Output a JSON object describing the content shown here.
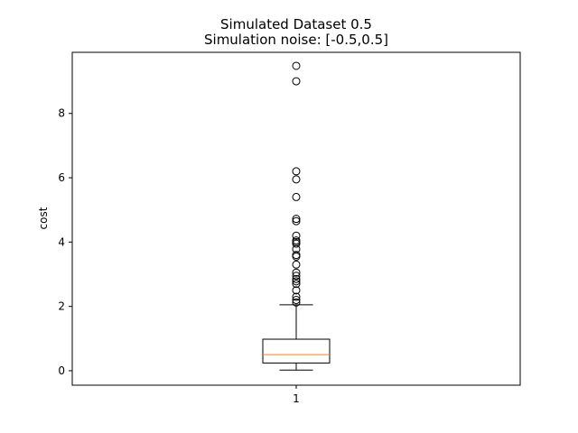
{
  "chart_data": {
    "type": "box",
    "title": "Simulated Dataset 0.5",
    "subtitle": "Simulation noise: [-0.5,0.5]",
    "xlabel": "",
    "ylabel": "cost",
    "categories": [
      "1"
    ],
    "ylim": [
      -0.45,
      9.9
    ],
    "yticks": [
      0,
      2,
      4,
      6,
      8
    ],
    "grid": false,
    "box": {
      "whisker_low": 0.02,
      "q1": 0.24,
      "median": 0.5,
      "q3": 0.98,
      "whisker_high": 2.05
    },
    "outliers": [
      2.12,
      2.2,
      2.3,
      2.5,
      2.7,
      2.78,
      2.85,
      2.95,
      3.05,
      3.3,
      3.55,
      3.6,
      3.78,
      3.95,
      4.0,
      4.05,
      4.2,
      4.65,
      4.72,
      5.4,
      5.95,
      6.2,
      9.0,
      9.48
    ],
    "colors": {
      "median": "#ff7f0e",
      "box": "#000000"
    }
  }
}
